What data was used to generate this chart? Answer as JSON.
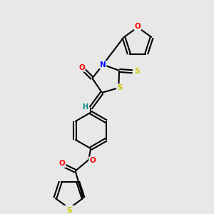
{
  "background_color": "#e8e8e8",
  "bond_color": "#000000",
  "atom_colors": {
    "O": "#ff0000",
    "N": "#0000ff",
    "S": "#c8c800",
    "C": "#000000",
    "H": "#008888"
  },
  "figsize": [
    3.0,
    3.0
  ],
  "dpi": 100
}
